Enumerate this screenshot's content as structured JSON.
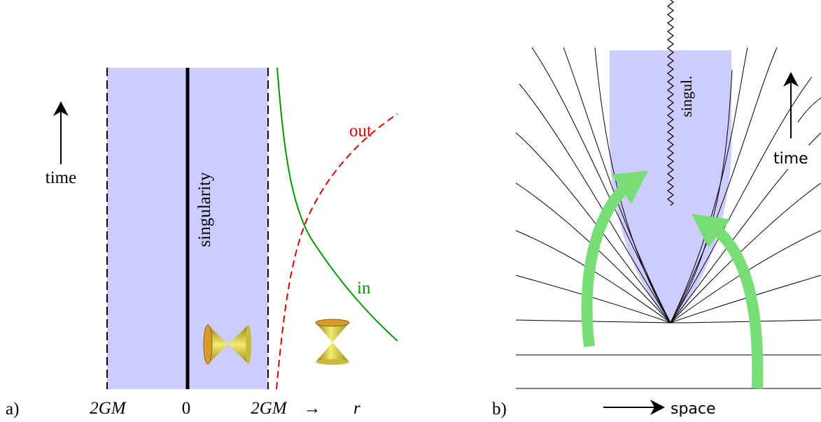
{
  "panel_a": {
    "label": "a)",
    "time_label": "time",
    "singularity_label": "singularity",
    "out_label": "out",
    "in_label": "in",
    "axis": {
      "left": "2GM",
      "center": "0",
      "right": "2GM",
      "arrow_glyph": "→",
      "variable": "r"
    },
    "colors": {
      "region": "#ccccff",
      "out_curve": "#dd0000",
      "in_curve": "#009900",
      "cone": "#e6d84a"
    }
  },
  "panel_b": {
    "label": "b)",
    "singularity_label": "singul.",
    "time_label": "time",
    "space_label": "space",
    "colors": {
      "region": "#ccccff",
      "flow_arrows": "#77dd77"
    }
  }
}
